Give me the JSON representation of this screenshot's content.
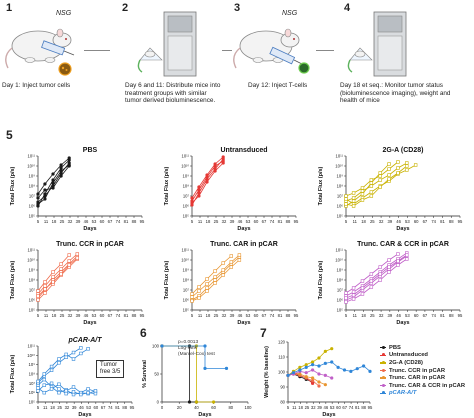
{
  "workflow": {
    "steps": [
      {
        "num": "1",
        "label": "NSG",
        "text": [
          "Day 1: Inject tumor cells"
        ]
      },
      {
        "num": "2",
        "label": "",
        "text": [
          "Day 6 and 11: Distribute mice into",
          "treatment groups with similar",
          "tumor derived bioluminescence."
        ]
      },
      {
        "num": "3",
        "label": "NSG",
        "text": [
          "Day 12: Inject T-cells"
        ]
      },
      {
        "num": "4",
        "label": "",
        "text": [
          "Day  18 et seq.: Monitor tumor status",
          "(bioluminescence imaging), weight and",
          "health of mice"
        ]
      }
    ]
  },
  "panel5_label": "5",
  "panel6_label": "6",
  "panel7_label": "7",
  "tumor_free_note": [
    "Tumor",
    "free 3/5"
  ],
  "stats_note": [
    "p=0.0013",
    "Log-rank",
    "(Mantel-Cox) test"
  ],
  "legend": [
    {
      "label": "PBS",
      "color": "#1a1a1a"
    },
    {
      "label": "Untransduced",
      "color": "#e53935"
    },
    {
      "label": "2G-A (CD28)",
      "color": "#c9b200"
    },
    {
      "label": "Trunc. CCR in pCAR",
      "color": "#ef6a4a"
    },
    {
      "label": "Trunc. CAR in pCAR",
      "color": "#e89530"
    },
    {
      "label": "Trunc. CAR & CCR in pCAR",
      "color": "#c060c8"
    },
    {
      "label": "pCAR-A/T",
      "color": "#2f86d8"
    }
  ],
  "chart_data": [
    {
      "type": "line",
      "title": "PBS",
      "xlabel": "Days",
      "ylabel": "Total Flux (p/s)",
      "color": "#1a1a1a",
      "x_ticks": [
        "5",
        "11",
        "18",
        "25",
        "32",
        "39",
        "46",
        "53",
        "60",
        "67",
        "74",
        "81",
        "88",
        "95"
      ],
      "y_ticks": [
        "10⁵",
        "10⁶",
        "10⁷",
        "10⁸",
        "10⁹",
        "10¹⁰",
        "10¹¹"
      ],
      "xlim": [
        5,
        95
      ],
      "ylim_log10": [
        5,
        11
      ],
      "series": [
        {
          "x": [
            5,
            11,
            18,
            25,
            32
          ],
          "y": [
            6.0,
            7.2,
            8.6,
            9.8,
            10.6
          ]
        },
        {
          "x": [
            5,
            11,
            18,
            25,
            32
          ],
          "y": [
            6.4,
            7.0,
            8.0,
            9.3,
            10.3
          ]
        },
        {
          "x": [
            5,
            11,
            18,
            25,
            32
          ],
          "y": [
            6.8,
            7.6,
            7.8,
            9.0,
            10.0
          ]
        },
        {
          "x": [
            5,
            11,
            18,
            25,
            32
          ],
          "y": [
            7.2,
            8.2,
            9.2,
            10.1,
            10.8
          ]
        },
        {
          "x": [
            5,
            11,
            18,
            25,
            32
          ],
          "y": [
            6.2,
            6.7,
            8.3,
            9.5,
            10.1
          ]
        }
      ]
    },
    {
      "type": "line",
      "title": "Untransduced",
      "xlabel": "Days",
      "ylabel": "Total Flux (p/s)",
      "color": "#e53935",
      "x_ticks": [
        "5",
        "11",
        "18",
        "25",
        "32",
        "39",
        "46",
        "53",
        "60",
        "67",
        "74",
        "81",
        "88",
        "95"
      ],
      "y_ticks": [
        "10⁵",
        "10⁶",
        "10⁷",
        "10⁸",
        "10⁹",
        "10¹⁰",
        "10¹¹"
      ],
      "xlim": [
        5,
        95
      ],
      "ylim_log10": [
        5,
        11
      ],
      "series": [
        {
          "x": [
            5,
            11,
            18,
            25,
            32
          ],
          "y": [
            6.1,
            7.3,
            8.7,
            9.7,
            10.7
          ]
        },
        {
          "x": [
            5,
            11,
            18,
            25,
            32
          ],
          "y": [
            6.5,
            7.6,
            8.9,
            10.0,
            10.5
          ]
        },
        {
          "x": [
            5,
            11,
            18,
            25,
            32
          ],
          "y": [
            6.8,
            7.9,
            9.1,
            10.2,
            10.9
          ]
        },
        {
          "x": [
            5,
            11,
            18,
            25,
            32
          ],
          "y": [
            6.3,
            7.0,
            8.4,
            9.5,
            10.3
          ]
        }
      ]
    },
    {
      "type": "line",
      "title": "2G-A (CD28)",
      "xlabel": "Days",
      "ylabel": "Total Flux (p/s)",
      "color": "#c9b200",
      "x_ticks": [
        "5",
        "11",
        "18",
        "25",
        "32",
        "39",
        "46",
        "53",
        "60",
        "67",
        "74",
        "81",
        "88",
        "95"
      ],
      "y_ticks": [
        "10⁵",
        "10⁶",
        "10⁷",
        "10⁸",
        "10⁹",
        "10¹⁰",
        "10¹¹"
      ],
      "xlim": [
        5,
        95
      ],
      "ylim_log10": [
        5,
        11
      ],
      "series": [
        {
          "x": [
            5,
            11,
            18,
            25,
            32,
            39,
            46,
            53
          ],
          "y": [
            6.5,
            6.8,
            7.5,
            8.0,
            8.6,
            9.1,
            9.8,
            10.3
          ]
        },
        {
          "x": [
            5,
            11,
            18,
            25,
            32,
            39
          ],
          "y": [
            6.0,
            6.5,
            7.2,
            8.3,
            9.3,
            10.2
          ]
        },
        {
          "x": [
            5,
            11,
            18,
            25,
            32,
            39,
            46,
            53,
            60
          ],
          "y": [
            6.7,
            6.2,
            6.8,
            7.4,
            8.0,
            8.5,
            9.2,
            9.6,
            10.1
          ]
        },
        {
          "x": [
            5,
            11,
            18,
            25,
            32,
            39,
            46
          ],
          "y": [
            7.0,
            7.3,
            7.8,
            8.6,
            9.0,
            9.7,
            10.4
          ]
        },
        {
          "x": [
            5,
            11,
            18,
            25,
            32,
            39,
            46,
            53
          ],
          "y": [
            6.2,
            6.0,
            6.6,
            7.0,
            7.9,
            8.7,
            9.3,
            10.0
          ]
        }
      ]
    },
    {
      "type": "line",
      "title": "Trunc. CCR in pCAR",
      "xlabel": "Days",
      "ylabel": "Total Flux (p/s)",
      "color": "#ef6a4a",
      "x_ticks": [
        "5",
        "11",
        "18",
        "25",
        "32",
        "39",
        "46",
        "53",
        "60",
        "67",
        "74",
        "81",
        "88",
        "95"
      ],
      "y_ticks": [
        "10⁵",
        "10⁶",
        "10⁷",
        "10⁸",
        "10⁹",
        "10¹⁰",
        "10¹¹"
      ],
      "xlim": [
        5,
        95
      ],
      "ylim_log10": [
        5,
        11
      ],
      "series": [
        {
          "x": [
            5,
            11,
            18,
            25,
            32,
            39
          ],
          "y": [
            6.2,
            7.0,
            8.0,
            8.8,
            9.6,
            10.4
          ]
        },
        {
          "x": [
            5,
            11,
            18,
            25,
            32,
            39
          ],
          "y": [
            6.6,
            7.4,
            8.3,
            9.1,
            9.9,
            10.6
          ]
        },
        {
          "x": [
            5,
            11,
            18,
            25,
            32,
            39
          ],
          "y": [
            6.0,
            6.7,
            7.6,
            8.5,
            9.3,
            10.1
          ]
        },
        {
          "x": [
            5,
            11,
            18,
            25,
            32
          ],
          "y": [
            6.9,
            7.8,
            8.8,
            9.6,
            10.5
          ]
        },
        {
          "x": [
            5,
            11,
            18,
            25,
            32,
            39
          ],
          "y": [
            6.4,
            7.1,
            7.8,
            8.6,
            9.5,
            10.2
          ]
        }
      ]
    },
    {
      "type": "line",
      "title": "Trunc. CAR in pCAR",
      "xlabel": "Days",
      "ylabel": "Total Flux (p/s)",
      "color": "#e89530",
      "x_ticks": [
        "5",
        "11",
        "18",
        "25",
        "32",
        "39",
        "46",
        "53",
        "60",
        "67",
        "74",
        "81",
        "88",
        "95"
      ],
      "y_ticks": [
        "10⁵",
        "10⁶",
        "10⁷",
        "10⁸",
        "10⁹",
        "10¹⁰",
        "10¹¹"
      ],
      "xlim": [
        5,
        95
      ],
      "ylim_log10": [
        5,
        11
      ],
      "series": [
        {
          "x": [
            5,
            11,
            18,
            25,
            32,
            39,
            46
          ],
          "y": [
            6.0,
            6.4,
            7.2,
            8.0,
            8.8,
            9.6,
            10.3
          ]
        },
        {
          "x": [
            5,
            11,
            18,
            25,
            32,
            39,
            46
          ],
          "y": [
            6.3,
            6.9,
            7.6,
            8.3,
            9.0,
            9.8,
            10.5
          ]
        },
        {
          "x": [
            5,
            11,
            18,
            25,
            32,
            39
          ],
          "y": [
            6.6,
            7.3,
            8.1,
            8.9,
            9.7,
            10.4
          ]
        },
        {
          "x": [
            5,
            11,
            18,
            25,
            32,
            39,
            46
          ],
          "y": [
            5.9,
            6.2,
            6.9,
            7.7,
            8.5,
            9.3,
            10.0
          ]
        }
      ]
    },
    {
      "type": "line",
      "title": "Trunc. CAR & CCR in pCAR",
      "xlabel": "Days",
      "ylabel": "Total Flux (p/s)",
      "color": "#c060c8",
      "x_ticks": [
        "5",
        "11",
        "18",
        "25",
        "32",
        "39",
        "46",
        "53",
        "60",
        "67",
        "74",
        "81",
        "88",
        "95"
      ],
      "y_ticks": [
        "10⁵",
        "10⁶",
        "10⁷",
        "10⁸",
        "10⁹",
        "10¹⁰",
        "10¹¹"
      ],
      "xlim": [
        5,
        95
      ],
      "ylim_log10": [
        5,
        11
      ],
      "series": [
        {
          "x": [
            5,
            11,
            18,
            25,
            32,
            39,
            46,
            53
          ],
          "y": [
            6.0,
            6.3,
            7.0,
            7.7,
            8.4,
            9.1,
            9.8,
            10.4
          ]
        },
        {
          "x": [
            5,
            11,
            18,
            25,
            32,
            39,
            46,
            53
          ],
          "y": [
            6.4,
            6.8,
            7.4,
            8.1,
            8.8,
            9.5,
            10.1,
            10.7
          ]
        },
        {
          "x": [
            5,
            11,
            18,
            25,
            32,
            39,
            46
          ],
          "y": [
            6.7,
            7.2,
            7.9,
            8.6,
            9.3,
            10.0,
            10.6
          ]
        },
        {
          "x": [
            5,
            11,
            18,
            25,
            32,
            39,
            46,
            53
          ],
          "y": [
            5.8,
            6.1,
            6.6,
            7.3,
            8.0,
            8.8,
            9.5,
            10.1
          ]
        },
        {
          "x": [
            5,
            11,
            18,
            25,
            32,
            39,
            46,
            53
          ],
          "y": [
            6.2,
            6.5,
            7.2,
            7.9,
            8.6,
            9.3,
            9.9,
            10.5
          ]
        }
      ]
    },
    {
      "type": "line",
      "title": "pCAR-A/T",
      "xlabel": "Days",
      "ylabel": "Total Flux (p/s)",
      "color": "#2f86d8",
      "x_ticks": [
        "5",
        "11",
        "18",
        "25",
        "32",
        "39",
        "46",
        "53",
        "60",
        "67",
        "74",
        "81",
        "88",
        "95"
      ],
      "y_ticks": [
        "10⁵",
        "10⁶",
        "10⁷",
        "10⁸",
        "10⁹",
        "10¹⁰",
        "10¹¹"
      ],
      "xlim": [
        5,
        95
      ],
      "ylim_log10": [
        5,
        11
      ],
      "series": [
        {
          "x": [
            5,
            11,
            18,
            25,
            32,
            39,
            46,
            53,
            60
          ],
          "y": [
            6.8,
            7.4,
            6.6,
            6.0,
            6.3,
            5.8,
            6.0,
            6.4,
            6.1
          ]
        },
        {
          "x": [
            5,
            11,
            18,
            25,
            32,
            39,
            46,
            53,
            60
          ],
          "y": [
            6.5,
            6.0,
            6.4,
            6.9,
            6.2,
            6.6,
            6.0,
            5.9,
            6.2
          ]
        },
        {
          "x": [
            5,
            11,
            18,
            25,
            32,
            39,
            46
          ],
          "y": [
            7.0,
            7.8,
            8.4,
            9.2,
            9.8,
            10.3,
            10.8
          ]
        },
        {
          "x": [
            5,
            11,
            18,
            25,
            32,
            39,
            46,
            53,
            60
          ],
          "y": [
            6.2,
            6.8,
            7.0,
            6.4,
            5.9,
            6.1,
            5.8,
            6.0,
            5.9
          ]
        },
        {
          "x": [
            5,
            11,
            18,
            25,
            32,
            39,
            46,
            53
          ],
          "y": [
            7.2,
            8.0,
            8.8,
            9.6,
            10.1,
            9.6,
            10.2,
            10.7
          ]
        }
      ]
    },
    {
      "type": "line",
      "title": "",
      "xlabel": "Days",
      "ylabel": "% Survival",
      "x_ticks": [
        "0",
        "20",
        "40",
        "60",
        "80",
        "100"
      ],
      "y_ticks": [
        "0",
        "50",
        "100"
      ],
      "xlim": [
        0,
        100
      ],
      "ylim": [
        0,
        100
      ],
      "series": [
        {
          "color": "#1a1a1a",
          "x": [
            0,
            32,
            32,
            40
          ],
          "y": [
            100,
            100,
            0,
            0
          ]
        },
        {
          "color": "#c9b200",
          "x": [
            0,
            40,
            40,
            60
          ],
          "y": [
            100,
            100,
            0,
            0
          ]
        },
        {
          "color": "#2f86d8",
          "x": [
            0,
            50,
            50,
            75
          ],
          "y": [
            100,
            100,
            60,
            60
          ]
        }
      ]
    },
    {
      "type": "line",
      "title": "",
      "xlabel": "Days",
      "ylabel": "Weight (% baseline)",
      "x_ticks": [
        "5",
        "11",
        "18",
        "25",
        "32",
        "39",
        "46",
        "53",
        "60",
        "67",
        "74",
        "81",
        "88",
        "95"
      ],
      "y_ticks": [
        "80",
        "90",
        "100",
        "110",
        "120"
      ],
      "xlim": [
        5,
        95
      ],
      "ylim": [
        80,
        125
      ],
      "series": [
        {
          "color": "#1a1a1a",
          "x": [
            5,
            11,
            18,
            25,
            32
          ],
          "y": [
            100,
            101,
            99,
            97,
            95
          ]
        },
        {
          "color": "#e53935",
          "x": [
            5,
            11,
            18,
            25,
            32
          ],
          "y": [
            100,
            102,
            100,
            98,
            94
          ]
        },
        {
          "color": "#c9b200",
          "x": [
            5,
            11,
            18,
            25,
            32,
            39,
            46,
            53
          ],
          "y": [
            100,
            103,
            106,
            108,
            110,
            113,
            118,
            120
          ]
        },
        {
          "color": "#ef6a4a",
          "x": [
            5,
            11,
            18,
            25,
            32,
            39
          ],
          "y": [
            100,
            101,
            100,
            98,
            96,
            92
          ]
        },
        {
          "color": "#e89530",
          "x": [
            5,
            11,
            18,
            25,
            32,
            39,
            46
          ],
          "y": [
            100,
            102,
            101,
            99,
            98,
            95,
            93
          ]
        },
        {
          "color": "#c060c8",
          "x": [
            5,
            11,
            18,
            25,
            32,
            39,
            46,
            53
          ],
          "y": [
            100,
            101,
            103,
            102,
            104,
            101,
            100,
            98
          ]
        },
        {
          "color": "#2f86d8",
          "x": [
            5,
            11,
            18,
            25,
            32,
            39,
            46,
            53,
            60,
            67,
            74,
            81,
            88,
            95
          ],
          "y": [
            100,
            102,
            104,
            106,
            108,
            107,
            109,
            110,
            106,
            104,
            103,
            105,
            107,
            103
          ]
        }
      ]
    }
  ]
}
